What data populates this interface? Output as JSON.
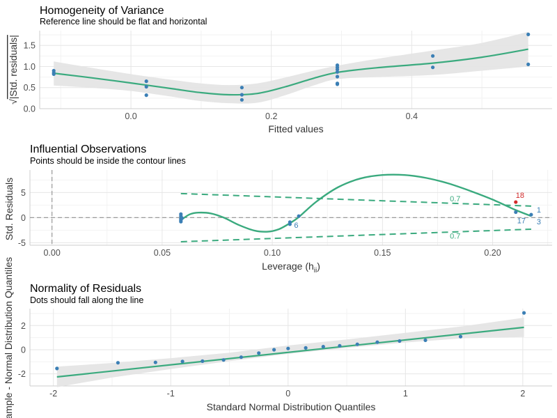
{
  "colors": {
    "fit_line": "#3aaa7e",
    "points": "#3b7fb5",
    "highlight": "#d12a2a",
    "band": "#e3e3e3",
    "grid_major": "#e6e6e6",
    "grid_minor": "#f2f2f2",
    "axis_line": "#cccccc",
    "ref_dash": "#999999"
  },
  "chart_data": [
    {
      "type": "scatter",
      "title": "Homogeneity of Variance",
      "subtitle": "Reference line should be flat and horizontal",
      "xlabel": "Fitted values",
      "ylabel_inner": "|Std. residuals|",
      "ylabel_prefix": "√",
      "xlim": [
        -0.13,
        0.6
      ],
      "ylim": [
        0.0,
        1.85
      ],
      "x_ticks": [
        0.0,
        0.2,
        0.4
      ],
      "x_tick_labels": [
        "0.0",
        "0.2",
        "0.4"
      ],
      "y_ticks": [
        0.0,
        0.5,
        1.0,
        1.5
      ],
      "y_tick_labels": [
        "0.0",
        "0.5",
        "1.0",
        "1.5"
      ],
      "points": [
        [
          -0.11,
          0.9
        ],
        [
          -0.11,
          0.85
        ],
        [
          -0.11,
          0.82
        ],
        [
          0.022,
          0.65
        ],
        [
          0.022,
          0.52
        ],
        [
          0.022,
          0.32
        ],
        [
          0.158,
          0.5
        ],
        [
          0.158,
          0.33
        ],
        [
          0.158,
          0.21
        ],
        [
          0.294,
          1.03
        ],
        [
          0.294,
          0.98
        ],
        [
          0.294,
          0.93
        ],
        [
          0.294,
          0.87
        ],
        [
          0.294,
          0.76
        ],
        [
          0.294,
          0.6
        ],
        [
          0.294,
          0.58
        ],
        [
          0.43,
          1.25
        ],
        [
          0.43,
          0.98
        ],
        [
          0.566,
          1.76
        ],
        [
          0.566,
          1.05
        ]
      ],
      "fit": {
        "x": [
          -0.11,
          -0.06,
          0.0,
          0.06,
          0.1,
          0.14,
          0.18,
          0.22,
          0.26,
          0.294,
          0.35,
          0.43,
          0.5,
          0.566
        ],
        "y": [
          0.84,
          0.74,
          0.61,
          0.47,
          0.38,
          0.33,
          0.36,
          0.52,
          0.72,
          0.86,
          0.97,
          1.08,
          1.22,
          1.41
        ],
        "lo": [
          0.55,
          0.5,
          0.42,
          0.28,
          0.18,
          0.13,
          0.14,
          0.32,
          0.55,
          0.7,
          0.75,
          0.8,
          0.9,
          1.0
        ],
        "hi": [
          1.12,
          0.98,
          0.82,
          0.68,
          0.6,
          0.56,
          0.6,
          0.74,
          0.9,
          1.02,
          1.18,
          1.38,
          1.56,
          1.82
        ]
      }
    },
    {
      "type": "scatter",
      "title": "Influential Observations",
      "subtitle": "Points should be inside the contour lines",
      "xlabel": "Leverage (h",
      "xlabel_sub": "ii",
      "xlabel_close": ")",
      "ylabel": "Std. Residuals",
      "xlim": [
        -0.01,
        0.227
      ],
      "ylim": [
        -5.5,
        9.5
      ],
      "x_ticks": [
        0.0,
        0.05,
        0.1,
        0.15,
        0.2
      ],
      "x_tick_labels": [
        "0.00",
        "0.05",
        "0.10",
        "0.15",
        "0.20"
      ],
      "y_ticks": [
        -5,
        0,
        5
      ],
      "y_tick_labels": [
        "-5",
        "0",
        "5"
      ],
      "points": [
        [
          0.0585,
          0.7
        ],
        [
          0.0585,
          0.3
        ],
        [
          0.0585,
          -0.2
        ],
        [
          0.0585,
          -0.5
        ],
        [
          0.0585,
          -0.8
        ],
        [
          0.059,
          -0.1
        ],
        [
          0.108,
          -1.3
        ],
        [
          0.108,
          -0.9
        ],
        [
          0.112,
          0.3
        ],
        [
          0.2105,
          1.1
        ],
        [
          0.2175,
          0.6
        ]
      ],
      "highlight_point": [
        0.2105,
        3.1
      ],
      "point_labels": [
        {
          "text": "18",
          "x": 0.2105,
          "y": 3.1,
          "dx": 0,
          "dy": -6,
          "color": "highlight"
        },
        {
          "text": "1",
          "x": 0.2175,
          "y": 0.6,
          "dx": 8,
          "dy": -3,
          "color": "points"
        },
        {
          "text": "17",
          "x": 0.2105,
          "y": 1.1,
          "dx": 2,
          "dy": 16,
          "color": "points"
        },
        {
          "text": "3",
          "x": 0.2175,
          "y": 0.6,
          "dx": 8,
          "dy": 14,
          "color": "points"
        },
        {
          "text": "6",
          "x": 0.108,
          "y": -0.9,
          "dx": 6,
          "dy": 8,
          "color": "points"
        }
      ],
      "contour_label": "0.7",
      "contour_upper": {
        "x": [
          0.0585,
          0.2175
        ],
        "y": [
          4.8,
          2.3
        ]
      },
      "contour_lower": {
        "x": [
          0.0585,
          0.2175
        ],
        "y": [
          -4.8,
          -2.3
        ]
      },
      "contour_label_pos": [
        0.183,
        3.8,
        -3.6
      ],
      "fit": {
        "x": [
          0.0585,
          0.0625,
          0.0665,
          0.072,
          0.078,
          0.085,
          0.092,
          0.098,
          0.103,
          0.108,
          0.112,
          0.12,
          0.13,
          0.14,
          0.15,
          0.16,
          0.17,
          0.18,
          0.19,
          0.2,
          0.21,
          0.2175
        ],
        "y": [
          -0.5,
          0.65,
          1.0,
          0.85,
          0.0,
          -1.5,
          -2.6,
          -2.8,
          -2.3,
          -1.1,
          0.1,
          3.2,
          6.1,
          7.8,
          8.5,
          8.5,
          7.9,
          6.8,
          5.3,
          3.6,
          1.6,
          0.3
        ]
      }
    },
    {
      "type": "scatter",
      "title": "Normality of Residuals",
      "subtitle": "Dots should fall along the line",
      "xlabel": "Standard Normal Distribution Quantiles",
      "ylabel": "Sample - Normal Distribution Quantiles",
      "xlim": [
        -2.2,
        2.25
      ],
      "ylim": [
        -3.0,
        3.4
      ],
      "x_ticks": [
        -2,
        -1,
        0,
        1,
        2
      ],
      "x_tick_labels": [
        "-2",
        "-1",
        "0",
        "1",
        "2"
      ],
      "y_ticks": [
        -2,
        0,
        2
      ],
      "y_tick_labels": [
        "-2",
        "0",
        "2"
      ],
      "points": [
        [
          -1.97,
          -1.55
        ],
        [
          -1.45,
          -1.08
        ],
        [
          -1.13,
          -1.05
        ],
        [
          -0.9,
          -0.97
        ],
        [
          -0.73,
          -0.95
        ],
        [
          -0.55,
          -0.85
        ],
        [
          -0.4,
          -0.62
        ],
        [
          -0.25,
          -0.28
        ],
        [
          -0.12,
          0.0
        ],
        [
          0.0,
          0.1
        ],
        [
          0.15,
          0.15
        ],
        [
          0.3,
          0.25
        ],
        [
          0.44,
          0.32
        ],
        [
          0.59,
          0.45
        ],
        [
          0.76,
          0.62
        ],
        [
          0.95,
          0.72
        ],
        [
          1.17,
          0.78
        ],
        [
          1.47,
          1.08
        ],
        [
          2.01,
          3.05
        ]
      ],
      "fit": {
        "x": [
          -1.97,
          2.01
        ],
        "y": [
          -2.25,
          1.85
        ]
      },
      "band": {
        "x": [
          -1.97,
          -1.5,
          -1.0,
          -0.5,
          0.0,
          0.5,
          1.0,
          1.5,
          2.01
        ],
        "lo": [
          -3.1,
          -2.3,
          -1.6,
          -0.95,
          -0.35,
          0.15,
          0.6,
          0.95,
          1.05
        ],
        "hi": [
          -1.4,
          -1.1,
          -0.7,
          -0.25,
          0.35,
          0.85,
          1.4,
          1.95,
          2.65
        ]
      }
    }
  ]
}
